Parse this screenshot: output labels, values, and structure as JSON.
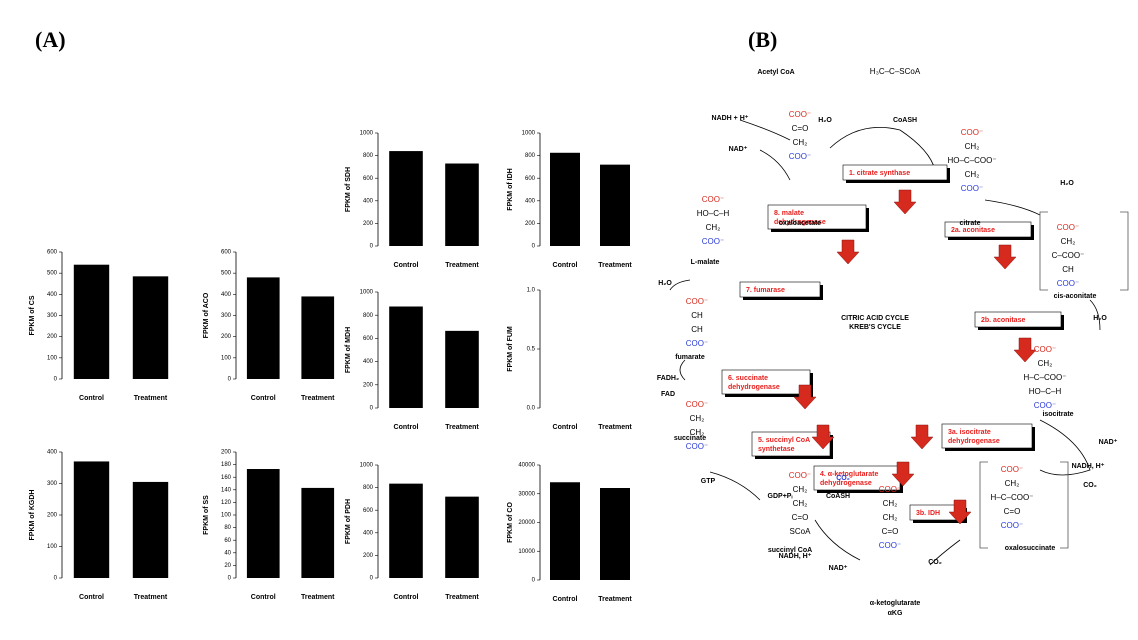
{
  "panel_labels": [
    "(A)",
    "(B)"
  ],
  "chart_data": [
    {
      "type": "bar",
      "ylabel": "FPKM of SDH",
      "categories": [
        "Control",
        "Treatment"
      ],
      "values": [
        840,
        730
      ],
      "color": "#000000",
      "ylim": [
        0,
        1000
      ],
      "yticks": [
        0,
        200,
        400,
        600,
        800,
        1000
      ]
    },
    {
      "type": "bar",
      "ylabel": "FPKM of IDH",
      "categories": [
        "Control",
        "Treatment"
      ],
      "values": [
        825,
        720
      ],
      "color": "#000000",
      "ylim": [
        0,
        1000
      ],
      "yticks": [
        0,
        200,
        400,
        600,
        800,
        1000
      ]
    },
    {
      "type": "bar",
      "ylabel": "FPKM of CS",
      "categories": [
        "Control",
        "Treatment"
      ],
      "values": [
        540,
        485
      ],
      "color": "#000000",
      "ylim": [
        0,
        600
      ],
      "yticks": [
        0,
        100,
        200,
        300,
        400,
        500,
        600
      ]
    },
    {
      "type": "bar",
      "ylabel": "FPKM of ACO",
      "categories": [
        "Control",
        "Treatment"
      ],
      "values": [
        480,
        390
      ],
      "color": "#000000",
      "ylim": [
        0,
        600
      ],
      "yticks": [
        0,
        100,
        200,
        300,
        400,
        500,
        600
      ]
    },
    {
      "type": "bar",
      "ylabel": "FPKM of MDH",
      "categories": [
        "Control",
        "Treatment"
      ],
      "values": [
        875,
        665
      ],
      "color": "#000000",
      "ylim": [
        0,
        1000
      ],
      "yticks": [
        0,
        200,
        400,
        600,
        800,
        1000
      ]
    },
    {
      "type": "bar",
      "ylabel": "FPKM of FUM",
      "categories": [
        "Control",
        "Treatment"
      ],
      "values": [
        0,
        0
      ],
      "color": "#000000",
      "ylim": [
        0,
        1
      ],
      "yticks": [
        {
          "value": 0,
          "label": "0.0"
        },
        0.5,
        {
          "value": 1,
          "label": "1.0"
        }
      ]
    },
    {
      "type": "bar",
      "ylabel": "FPKM of KGDH",
      "categories": [
        "Control",
        "Treatment"
      ],
      "values": [
        370,
        305
      ],
      "color": "#000000",
      "ylim": [
        0,
        400
      ],
      "yticks": [
        0,
        100,
        200,
        300,
        400
      ]
    },
    {
      "type": "bar",
      "ylabel": "FPKM of SS",
      "categories": [
        "Control",
        "Treatment"
      ],
      "values": [
        173,
        143
      ],
      "color": "#000000",
      "ylim": [
        0,
        200
      ],
      "yticks": [
        0,
        20,
        40,
        60,
        80,
        100,
        120,
        140,
        160,
        180,
        200
      ]
    },
    {
      "type": "bar",
      "ylabel": "FPKM of PDH",
      "categories": [
        "Control",
        "Treatment"
      ],
      "values": [
        835,
        720
      ],
      "color": "#000000",
      "ylim": [
        0,
        1000
      ],
      "yticks": [
        0,
        200,
        400,
        600,
        800,
        1000
      ]
    },
    {
      "type": "bar",
      "ylabel": "FPKM of CO",
      "categories": [
        "Control",
        "Treatment"
      ],
      "values": [
        34000,
        32000
      ],
      "color": "#000000",
      "ylim": [
        0,
        40000
      ],
      "yticks": [
        0,
        10000,
        20000,
        30000,
        40000
      ]
    }
  ],
  "diagram": {
    "title": [
      "CITRIC ACID CYCLE",
      "KREB'S CYCLE"
    ],
    "enzymes": [
      {
        "label": [
          "1. citrate synthase"
        ]
      },
      {
        "label": [
          "8. malate",
          "dehydrogenase"
        ]
      },
      {
        "label": [
          "2a. aconitase"
        ]
      },
      {
        "label": [
          "7. fumarase"
        ]
      },
      {
        "label": [
          "2b. aconitase"
        ]
      },
      {
        "label": [
          "6. succinate",
          "dehydrogenase"
        ]
      },
      {
        "label": [
          "5. succinyl CoA",
          "synthetase"
        ]
      },
      {
        "label": [
          "3a. isocitrate",
          "dehydrogenase"
        ]
      },
      {
        "label": [
          "4. α-ketoglutarate",
          "dehydrogenase"
        ]
      },
      {
        "label": [
          "3b. IDH"
        ]
      }
    ],
    "metabolites": [
      {
        "name": [
          "oxaloacetate"
        ],
        "formula": [
          "COO⁻",
          "C=O",
          "CH₂",
          "COO⁻"
        ]
      },
      {
        "name": [
          "citrate"
        ],
        "formula": [
          "COO⁻",
          "CH₂",
          "HO–C–COO⁻",
          "CH₂",
          "COO⁻"
        ]
      },
      {
        "name": [
          "cis-aconitate"
        ],
        "formula": [
          "COO⁻",
          "CH₂",
          "C–COO⁻",
          "CH",
          "COO⁻"
        ]
      },
      {
        "name": [
          "isocitrate"
        ],
        "formula": [
          "COO⁻",
          "CH₂",
          "H–C–COO⁻",
          "HO–C–H",
          "COO⁻"
        ]
      },
      {
        "name": [
          "oxalosuccinate"
        ],
        "formula": [
          "COO⁻",
          "CH₂",
          "H–C–COO⁻",
          "C=O",
          "COO⁻"
        ]
      },
      {
        "name": [
          "α-ketoglutarate",
          "αKG"
        ],
        "formula": [
          "COO⁻",
          "CH₂",
          "CH₂",
          "C=O",
          "COO⁻"
        ]
      },
      {
        "name": [
          "succinyl CoA"
        ],
        "formula": [
          "COO⁻",
          "CH₂",
          "CH₂",
          "C=O",
          "SCoA"
        ]
      },
      {
        "name": [
          "succinate"
        ],
        "formula": [
          "COO⁻",
          "CH₂",
          "CH₂",
          "COO⁻"
        ]
      },
      {
        "name": [
          "fumarate"
        ],
        "formula": [
          "COO⁻",
          "CH",
          "CH",
          "COO⁻"
        ]
      },
      {
        "name": [
          "L-malate"
        ],
        "formula": [
          "COO⁻",
          "HO–C–H",
          "CH₂",
          "COO⁻"
        ]
      },
      {
        "name": [
          "Acetyl CoA"
        ],
        "formula": [
          "H₃C–C–SCoA"
        ]
      }
    ],
    "cofactors": [
      "H₂O",
      "CoASH",
      "NADH + H⁺",
      "NAD⁺",
      "H₂O",
      "H₂O",
      "NAD⁺",
      "NADH, H⁺",
      "CO₂",
      "CO₂",
      "CO₂",
      "CoASH",
      "NAD⁺",
      "NADH, H⁺",
      "GTP",
      "GDP+Pᵢ",
      "FADH₂",
      "FAD",
      "H₂O"
    ]
  }
}
